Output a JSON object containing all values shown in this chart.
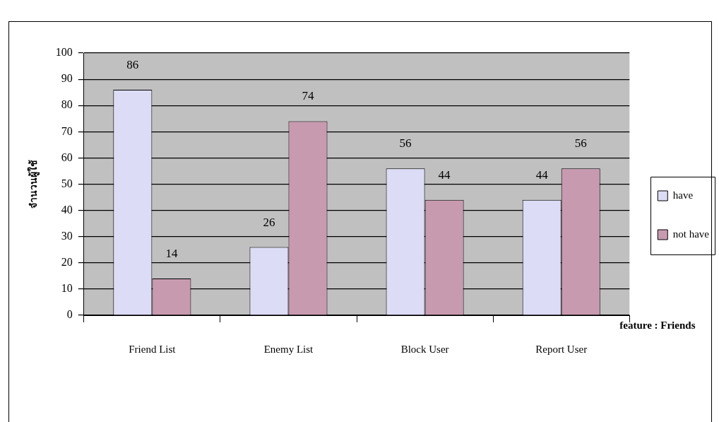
{
  "chart_data": {
    "type": "bar",
    "categories": [
      "Friend List",
      "Enemy List",
      "Block User",
      "Report User"
    ],
    "series": [
      {
        "name": "have",
        "color": "#dcdcf6",
        "values": [
          86,
          26,
          56,
          44
        ]
      },
      {
        "name": "not have",
        "color": "#c89ab0",
        "values": [
          14,
          74,
          44,
          56
        ]
      }
    ],
    "xlabel": "feature : Friends",
    "ylabel": "จำนวนผู้ใช้",
    "ylim": [
      0,
      100
    ],
    "yticks": [
      0,
      10,
      20,
      30,
      40,
      50,
      60,
      70,
      80,
      90,
      100
    ],
    "grid": "y",
    "legend": "right",
    "data_labels": true
  }
}
